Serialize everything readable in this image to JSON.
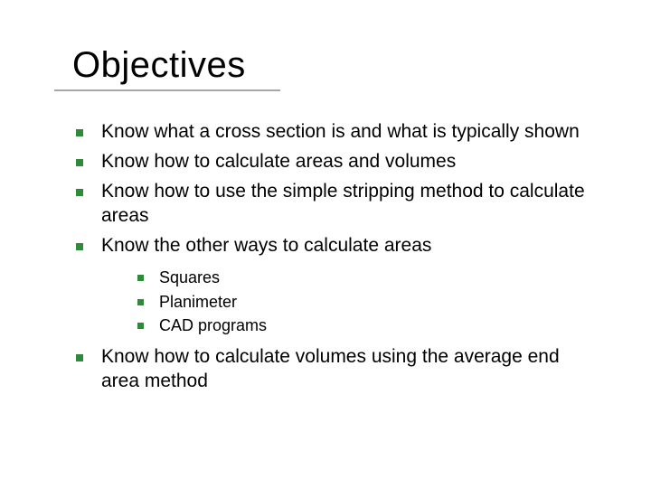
{
  "colors": {
    "text": "#000000",
    "bullet": "#2f8a3a",
    "underline": "#a7a7a7",
    "background": "#ffffff"
  },
  "typography": {
    "title_fontsize": 40,
    "body_fontsize": 21,
    "sub_fontsize": 18,
    "font_family": "Verdana"
  },
  "title": "Objectives",
  "bullets": [
    {
      "text": "Know what a cross section is and what is typically shown"
    },
    {
      "text": "Know how to calculate areas and volumes"
    },
    {
      "text": "Know how to use the simple stripping method to calculate areas"
    },
    {
      "text": "Know the other ways to calculate areas",
      "sub": [
        {
          "text": "Squares"
        },
        {
          "text": "Planimeter"
        },
        {
          "text": "CAD programs"
        }
      ]
    },
    {
      "text": "Know how to calculate volumes using the average end area method"
    }
  ]
}
